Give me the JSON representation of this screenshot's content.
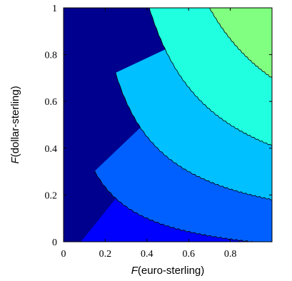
{
  "chart_data": {
    "type": "contour",
    "title": "",
    "xlabel_italic": "F",
    "xlabel_rest": "(euro-sterling)",
    "ylabel_italic": "F",
    "ylabel_rest": "(dollar-sterling)",
    "xlim": [
      0,
      1
    ],
    "ylim": [
      0,
      1
    ],
    "xticks": [
      0,
      0.2,
      0.4,
      0.6,
      0.8
    ],
    "xtick_labels": [
      "0",
      "0.2",
      "0.4",
      "0.6",
      "0.8"
    ],
    "yticks": [
      0,
      0.2,
      0.4,
      0.6,
      0.8,
      1
    ],
    "ytick_labels": [
      "0",
      "0.2",
      "0.4",
      "0.6",
      "0.8",
      "1"
    ],
    "colormap": "jet",
    "levels": [
      0.1,
      0.2,
      0.3,
      0.4,
      0.5,
      0.6,
      0.7,
      0.8,
      0.9
    ],
    "level_colors": [
      "#00008f",
      "#0000ff",
      "#0060ff",
      "#00c0ff",
      "#20ffdf",
      "#80ff80",
      "#dfff20",
      "#ffc000",
      "#ff6000",
      "#e00000",
      "#800000"
    ],
    "grid": false
  }
}
